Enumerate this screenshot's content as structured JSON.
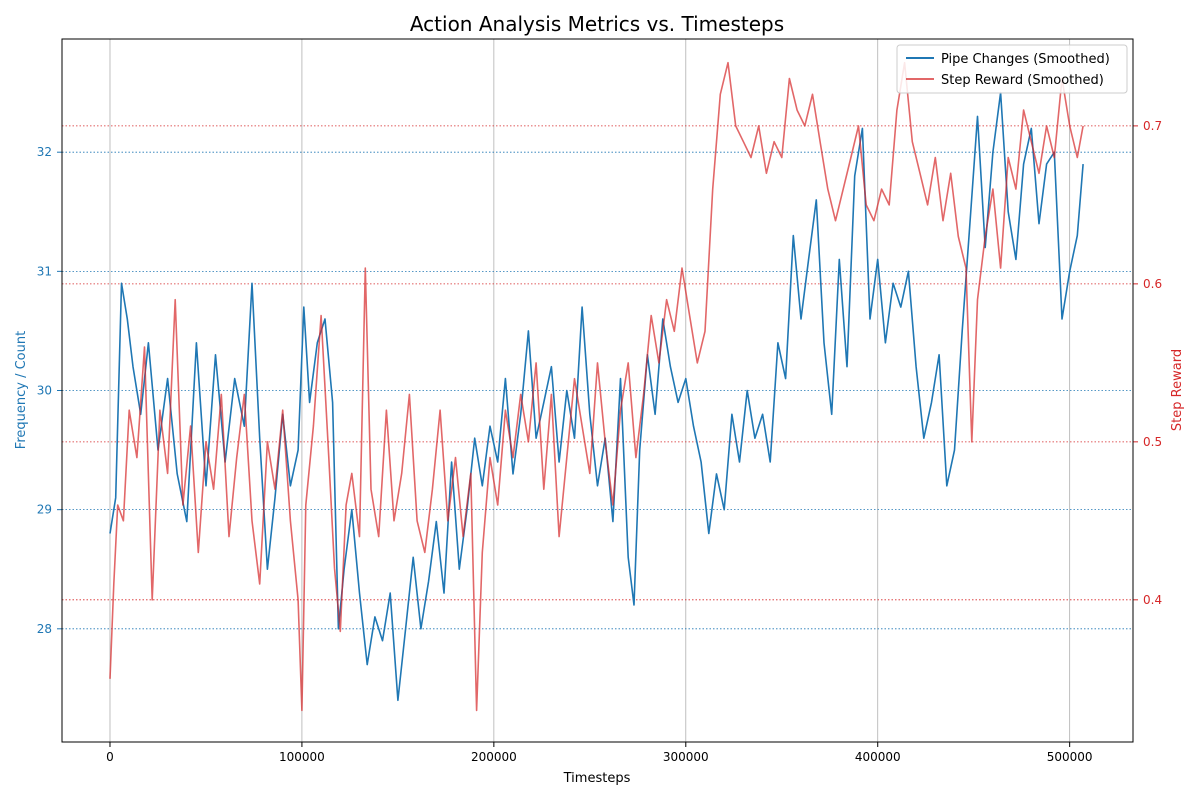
{
  "chart_data": {
    "type": "line",
    "title": "Action Analysis Metrics vs. Timesteps",
    "xlabel": "Timesteps",
    "ylabel_left": "Frequency / Count",
    "ylabel_right": "Step Reward",
    "xlim": [
      -25000,
      533000
    ],
    "ylim_left": [
      27.05,
      32.95
    ],
    "ylim_right": [
      0.31,
      0.755
    ],
    "x_ticks": [
      0,
      100000,
      200000,
      300000,
      400000,
      500000
    ],
    "y_left_ticks": [
      28,
      29,
      30,
      31,
      32
    ],
    "y_right_ticks": [
      0.4,
      0.5,
      0.6,
      0.7
    ],
    "grid": "vertical gridlines at x ticks; dotted horizontal gridlines per axis in series color",
    "legend_placement": "top-right",
    "series": [
      {
        "name": "Pipe Changes (Smoothed)",
        "axis": "left",
        "color": "#1f77b4",
        "x": [
          0,
          3000,
          6000,
          9000,
          12000,
          16000,
          20000,
          25000,
          30000,
          35000,
          40000,
          45000,
          50000,
          55000,
          60000,
          65000,
          70000,
          74000,
          78000,
          82000,
          86000,
          90000,
          94000,
          98000,
          101000,
          104000,
          108000,
          112000,
          116000,
          119000,
          122000,
          126000,
          130000,
          134000,
          138000,
          142000,
          146000,
          150000,
          154000,
          158000,
          162000,
          166000,
          170000,
          174000,
          178000,
          182000,
          186000,
          190000,
          194000,
          198000,
          202000,
          206000,
          210000,
          214000,
          218000,
          222000,
          226000,
          230000,
          234000,
          238000,
          242000,
          246000,
          250000,
          254000,
          258000,
          262000,
          266000,
          270000,
          273000,
          276000,
          280000,
          284000,
          288000,
          292000,
          296000,
          300000,
          304000,
          308000,
          312000,
          316000,
          320000,
          324000,
          328000,
          332000,
          336000,
          340000,
          344000,
          348000,
          352000,
          356000,
          360000,
          364000,
          368000,
          372000,
          376000,
          380000,
          384000,
          388000,
          392000,
          396000,
          400000,
          404000,
          408000,
          412000,
          416000,
          420000,
          424000,
          428000,
          432000,
          436000,
          440000,
          444000,
          448000,
          452000,
          456000,
          460000,
          464000,
          468000,
          472000,
          476000,
          480000,
          484000,
          488000,
          492000,
          496000,
          500000,
          504000,
          507000
        ],
        "y": [
          28.8,
          29.1,
          30.9,
          30.6,
          30.2,
          29.8,
          30.4,
          29.5,
          30.1,
          29.3,
          28.9,
          30.4,
          29.2,
          30.3,
          29.4,
          30.1,
          29.7,
          30.9,
          29.6,
          28.5,
          29.1,
          29.8,
          29.2,
          29.5,
          30.7,
          29.9,
          30.4,
          30.6,
          29.9,
          28.0,
          28.5,
          29.0,
          28.3,
          27.7,
          28.1,
          27.9,
          28.3,
          27.4,
          28.0,
          28.6,
          28.0,
          28.4,
          28.9,
          28.3,
          29.4,
          28.5,
          29.0,
          29.6,
          29.2,
          29.7,
          29.4,
          30.1,
          29.3,
          29.8,
          30.5,
          29.6,
          29.9,
          30.2,
          29.4,
          30.0,
          29.6,
          30.7,
          29.8,
          29.2,
          29.6,
          28.9,
          30.1,
          28.6,
          28.2,
          29.5,
          30.3,
          29.8,
          30.6,
          30.2,
          29.9,
          30.1,
          29.7,
          29.4,
          28.8,
          29.3,
          29.0,
          29.8,
          29.4,
          30.0,
          29.6,
          29.8,
          29.4,
          30.4,
          30.1,
          31.3,
          30.6,
          31.1,
          31.6,
          30.4,
          29.8,
          31.1,
          30.2,
          31.8,
          32.2,
          30.6,
          31.1,
          30.4,
          30.9,
          30.7,
          31.0,
          30.2,
          29.6,
          29.9,
          30.3,
          29.2,
          29.5,
          30.5,
          31.4,
          32.3,
          31.2,
          32.0,
          32.5,
          31.5,
          31.1,
          31.9,
          32.2,
          31.4,
          31.9,
          32.0,
          30.6,
          31.0,
          31.3,
          31.9
        ]
      },
      {
        "name": "Step Reward (Smoothed)",
        "axis": "right",
        "color": "#d62728",
        "x": [
          0,
          2000,
          4000,
          7000,
          10000,
          14000,
          18000,
          22000,
          26000,
          30000,
          34000,
          38000,
          42000,
          46000,
          50000,
          54000,
          58000,
          62000,
          66000,
          70000,
          74000,
          78000,
          82000,
          86000,
          90000,
          94000,
          98000,
          100000,
          102000,
          106000,
          110000,
          114000,
          117000,
          120000,
          123000,
          126000,
          130000,
          133000,
          136000,
          140000,
          144000,
          148000,
          152000,
          156000,
          160000,
          164000,
          168000,
          172000,
          176000,
          180000,
          184000,
          188000,
          191000,
          194000,
          198000,
          202000,
          206000,
          210000,
          214000,
          218000,
          222000,
          226000,
          230000,
          234000,
          238000,
          242000,
          246000,
          250000,
          254000,
          258000,
          262000,
          266000,
          270000,
          274000,
          278000,
          282000,
          286000,
          290000,
          294000,
          298000,
          302000,
          306000,
          310000,
          314000,
          318000,
          322000,
          326000,
          330000,
          334000,
          338000,
          342000,
          346000,
          350000,
          354000,
          358000,
          362000,
          366000,
          370000,
          374000,
          378000,
          382000,
          386000,
          390000,
          394000,
          398000,
          402000,
          406000,
          410000,
          414000,
          418000,
          422000,
          426000,
          430000,
          434000,
          438000,
          442000,
          446000,
          449000,
          452000,
          456000,
          460000,
          464000,
          468000,
          472000,
          476000,
          480000,
          484000,
          488000,
          492000,
          496000,
          500000,
          504000,
          507000
        ],
        "y": [
          0.35,
          0.41,
          0.46,
          0.45,
          0.52,
          0.49,
          0.56,
          0.4,
          0.52,
          0.48,
          0.59,
          0.46,
          0.51,
          0.43,
          0.5,
          0.47,
          0.53,
          0.44,
          0.49,
          0.53,
          0.45,
          0.41,
          0.5,
          0.47,
          0.52,
          0.45,
          0.4,
          0.33,
          0.46,
          0.51,
          0.58,
          0.49,
          0.42,
          0.38,
          0.46,
          0.48,
          0.44,
          0.61,
          0.47,
          0.44,
          0.52,
          0.45,
          0.48,
          0.53,
          0.45,
          0.43,
          0.47,
          0.52,
          0.45,
          0.49,
          0.44,
          0.48,
          0.33,
          0.43,
          0.49,
          0.46,
          0.52,
          0.49,
          0.53,
          0.5,
          0.55,
          0.47,
          0.53,
          0.44,
          0.49,
          0.54,
          0.51,
          0.48,
          0.55,
          0.5,
          0.46,
          0.52,
          0.55,
          0.49,
          0.53,
          0.58,
          0.55,
          0.59,
          0.57,
          0.61,
          0.58,
          0.55,
          0.57,
          0.66,
          0.72,
          0.74,
          0.7,
          0.69,
          0.68,
          0.7,
          0.67,
          0.69,
          0.68,
          0.73,
          0.71,
          0.7,
          0.72,
          0.69,
          0.66,
          0.64,
          0.66,
          0.68,
          0.7,
          0.65,
          0.64,
          0.66,
          0.65,
          0.71,
          0.74,
          0.69,
          0.67,
          0.65,
          0.68,
          0.64,
          0.67,
          0.63,
          0.61,
          0.5,
          0.59,
          0.63,
          0.66,
          0.61,
          0.68,
          0.66,
          0.71,
          0.69,
          0.67,
          0.7,
          0.68,
          0.73,
          0.7,
          0.68,
          0.7
        ]
      }
    ]
  }
}
